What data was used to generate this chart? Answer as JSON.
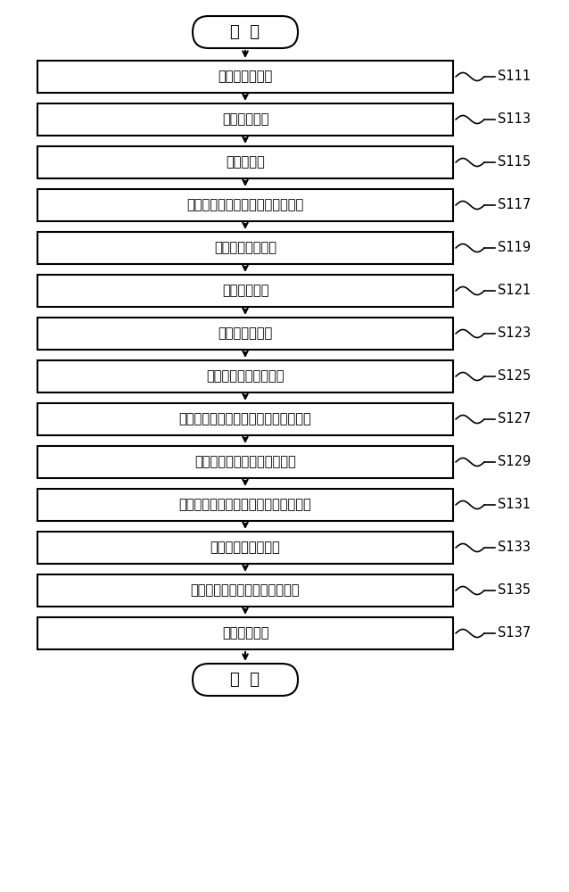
{
  "bg_color": "#ffffff",
  "box_color": "#ffffff",
  "box_edge_color": "#000000",
  "text_color": "#000000",
  "start_end_labels": [
    "开  始",
    "结  束"
  ],
  "steps": [
    {
      "label": "获取脉搋波信号",
      "step_id": "S111"
    },
    {
      "label": "滤波去噪处理",
      "step_id": "S113"
    },
    {
      "label": "确定主峰点",
      "step_id": "S115"
    },
    {
      "label": "确定每个脉搋波信号周期的起始点",
      "step_id": "S117"
    },
    {
      "label": "去除基线漂移影响",
      "step_id": "S119"
    },
    {
      "label": "数据归一处理",
      "step_id": "S121"
    },
    {
      "label": "确定可能极値点",
      "step_id": "S123"
    },
    {
      "label": "依据始点计算平均周期",
      "step_id": "S125"
    },
    {
      "label": "第一次去除可能极値点中的干扰极値点",
      "step_id": "S127"
    },
    {
      "label": "对可能极値点进行直方图统计",
      "step_id": "S129"
    },
    {
      "label": "第二次去除可能极値点中的干扰极値点",
      "step_id": "S131"
    },
    {
      "label": "去除紊乱脉搋波周期",
      "step_id": "S133"
    },
    {
      "label": "确定脉搋波周期信号中的特征点",
      "step_id": "S135"
    },
    {
      "label": "获取特征参数",
      "step_id": "S137"
    }
  ],
  "figsize": [
    6.38,
    10.0
  ],
  "dpi": 100
}
